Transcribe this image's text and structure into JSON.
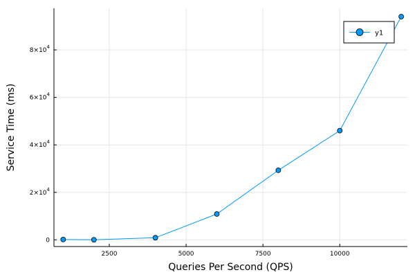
{
  "chart_data": {
    "type": "line",
    "title": "",
    "xlabel": "Queries Per Second (QPS)",
    "ylabel": "Service Time (ms)",
    "xlim": [
      700,
      12200
    ],
    "ylim": [
      -2800,
      97500
    ],
    "grid": true,
    "legend_position": "top-right",
    "x_ticks": [
      2500,
      5000,
      7500,
      10000
    ],
    "x_tick_labels": [
      "2500",
      "5000",
      "7500",
      "10000"
    ],
    "y_ticks": [
      0,
      20000,
      40000,
      60000,
      80000
    ],
    "y_tick_labels": [
      {
        "base": "0",
        "exp": ""
      },
      {
        "base": "2×10",
        "exp": "4"
      },
      {
        "base": "4×10",
        "exp": "4"
      },
      {
        "base": "6×10",
        "exp": "4"
      },
      {
        "base": "8×10",
        "exp": "4"
      }
    ],
    "series": [
      {
        "name": "y1",
        "color": "#009af9",
        "marker": "circle",
        "x": [
          1000,
          2000,
          4000,
          6000,
          8000,
          10000,
          12000
        ],
        "y": [
          150,
          50,
          900,
          10900,
          29300,
          46000,
          94000
        ]
      }
    ]
  }
}
